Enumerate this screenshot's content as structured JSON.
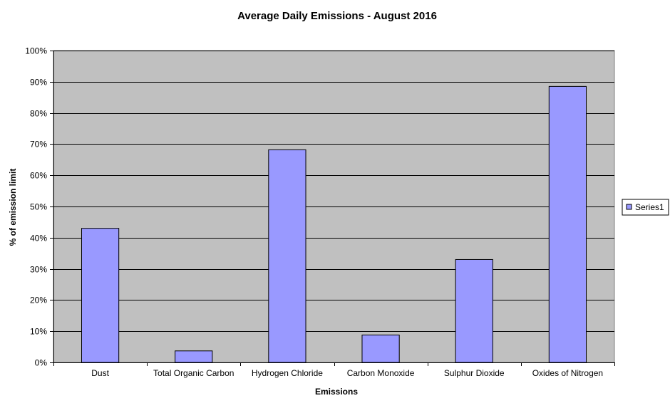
{
  "chart_data": {
    "type": "bar",
    "title": "Average Daily Emissions - August  2016",
    "xlabel": "Emissions",
    "ylabel": "% of emission limit",
    "categories": [
      "Dust",
      "Total Organic Carbon",
      "Hydrogen Chloride",
      "Carbon Monoxide",
      "Sulphur Dioxide",
      "Oxides of Nitrogen"
    ],
    "series": [
      {
        "name": "Series1",
        "values": [
          0.43,
          0.037,
          0.682,
          0.088,
          0.33,
          0.885
        ],
        "color": "#9999ff"
      }
    ],
    "ylim": [
      0,
      1
    ],
    "yticks": [
      0,
      0.1,
      0.2,
      0.3,
      0.4,
      0.5,
      0.6,
      0.7,
      0.8,
      0.9,
      1.0
    ],
    "ytick_labels": [
      "0%",
      "10%",
      "20%",
      "30%",
      "40%",
      "50%",
      "60%",
      "70%",
      "80%",
      "90%",
      "100%"
    ],
    "grid": true,
    "legend": "right",
    "plot_background": "#c0c0c0"
  }
}
